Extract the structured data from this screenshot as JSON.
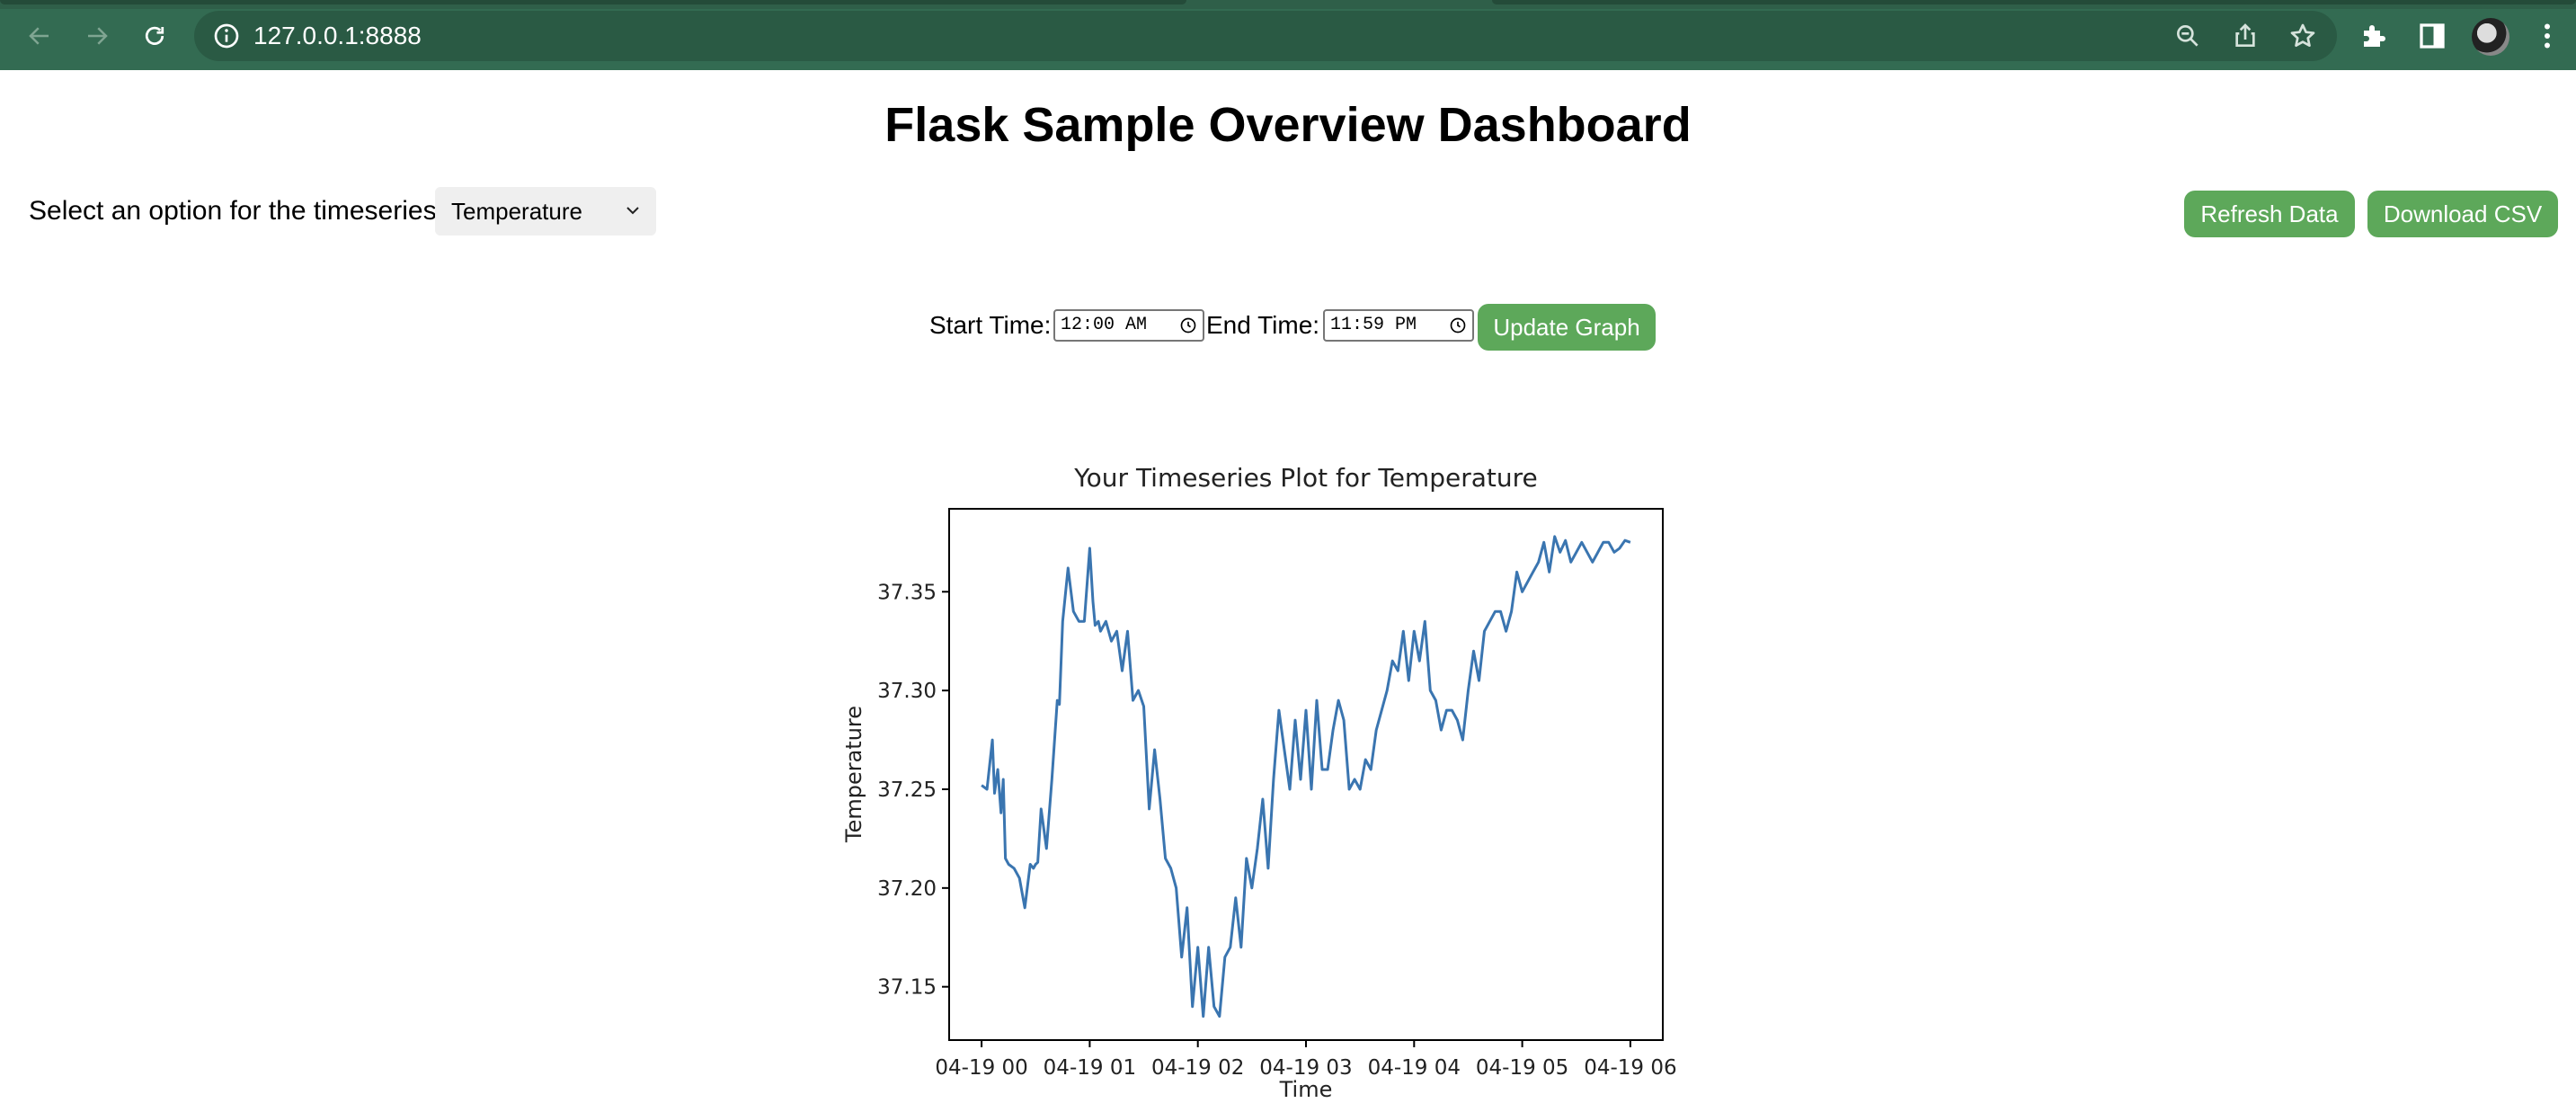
{
  "browser": {
    "url": "127.0.0.1:8888",
    "icons": [
      "back-icon",
      "forward-icon",
      "reload-icon",
      "site-info-icon",
      "zoom-icon",
      "share-icon",
      "bookmark-star-icon",
      "extensions-icon",
      "side-panel-icon",
      "profile-avatar",
      "kebab-menu-icon"
    ],
    "theme_color": "#336b52"
  },
  "page": {
    "title": "Flask Sample Overview Dashboard",
    "select_label": "Select an option for the timeseries:",
    "select_value": "Temperature",
    "refresh_button": "Refresh Data",
    "download_button": "Download CSV",
    "start_label": "Start Time:",
    "start_value": "12:00 AM",
    "end_label": "End Time:",
    "end_value": "11:59 PM",
    "update_button": "Update Graph",
    "button_color": "#5da85a"
  },
  "chart_data": {
    "type": "line",
    "title": "Your Timeseries Plot for Temperature",
    "xlabel": "Time",
    "ylabel": "Temperature",
    "xticks": [
      "04-19 00",
      "04-19 01",
      "04-19 02",
      "04-19 03",
      "04-19 04",
      "04-19 05",
      "04-19 06"
    ],
    "yticks": [
      "37.15",
      "37.20",
      "37.25",
      "37.30",
      "37.35"
    ],
    "xlim": [
      -0.3,
      6.3
    ],
    "ylim": [
      37.123,
      37.392
    ],
    "line_color": "#3a75b0",
    "series": [
      {
        "x": [
          0.0,
          0.05,
          0.1,
          0.12,
          0.15,
          0.18,
          0.2,
          0.22,
          0.25,
          0.3,
          0.35,
          0.4,
          0.45,
          0.48,
          0.5,
          0.52,
          0.55,
          0.6,
          0.65,
          0.7,
          0.72,
          0.75,
          0.8,
          0.85,
          0.9,
          0.95,
          1.0,
          1.03,
          1.05,
          1.08,
          1.1,
          1.15,
          1.2,
          1.25,
          1.3,
          1.35,
          1.4,
          1.45,
          1.5,
          1.55,
          1.6,
          1.65,
          1.7,
          1.75,
          1.8,
          1.85,
          1.9,
          1.95,
          2.0,
          2.05,
          2.1,
          2.15,
          2.2,
          2.25,
          2.3,
          2.35,
          2.4,
          2.45,
          2.5,
          2.55,
          2.6,
          2.65,
          2.7,
          2.75,
          2.8,
          2.85,
          2.9,
          2.95,
          3.0,
          3.05,
          3.1,
          3.15,
          3.2,
          3.25,
          3.3,
          3.35,
          3.4,
          3.45,
          3.5,
          3.55,
          3.6,
          3.65,
          3.7,
          3.75,
          3.8,
          3.85,
          3.9,
          3.95,
          4.0,
          4.05,
          4.1,
          4.15,
          4.2,
          4.25,
          4.3,
          4.35,
          4.4,
          4.45,
          4.5,
          4.55,
          4.6,
          4.65,
          4.7,
          4.75,
          4.8,
          4.85,
          4.9,
          4.95,
          5.0,
          5.05,
          5.1,
          5.15,
          5.2,
          5.25,
          5.3,
          5.35,
          5.4,
          5.45,
          5.5,
          5.55,
          5.6,
          5.65,
          5.7,
          5.75,
          5.8,
          5.85,
          5.9,
          5.95,
          6.0
        ],
        "y": [
          37.252,
          37.25,
          37.275,
          37.248,
          37.26,
          37.238,
          37.255,
          37.215,
          37.212,
          37.21,
          37.205,
          37.19,
          37.212,
          37.21,
          37.212,
          37.213,
          37.24,
          37.22,
          37.255,
          37.295,
          37.293,
          37.335,
          37.362,
          37.34,
          37.335,
          37.335,
          37.372,
          37.345,
          37.333,
          37.335,
          37.33,
          37.335,
          37.325,
          37.33,
          37.31,
          37.33,
          37.295,
          37.3,
          37.292,
          37.24,
          37.27,
          37.245,
          37.215,
          37.21,
          37.2,
          37.165,
          37.19,
          37.14,
          37.17,
          37.135,
          37.17,
          37.14,
          37.135,
          37.165,
          37.17,
          37.195,
          37.17,
          37.215,
          37.2,
          37.22,
          37.245,
          37.21,
          37.255,
          37.29,
          37.27,
          37.25,
          37.285,
          37.255,
          37.29,
          37.25,
          37.295,
          37.26,
          37.26,
          37.28,
          37.295,
          37.285,
          37.25,
          37.255,
          37.25,
          37.265,
          37.26,
          37.28,
          37.29,
          37.3,
          37.315,
          37.31,
          37.33,
          37.305,
          37.33,
          37.315,
          37.335,
          37.3,
          37.295,
          37.28,
          37.29,
          37.29,
          37.285,
          37.275,
          37.3,
          37.32,
          37.305,
          37.33,
          37.335,
          37.34,
          37.34,
          37.33,
          37.34,
          37.36,
          37.35,
          37.355,
          37.36,
          37.365,
          37.375,
          37.36,
          37.378,
          37.37,
          37.376,
          37.365,
          37.37,
          37.375,
          37.37,
          37.365,
          37.37,
          37.375,
          37.375,
          37.37,
          37.372,
          37.376,
          37.375
        ]
      }
    ]
  }
}
